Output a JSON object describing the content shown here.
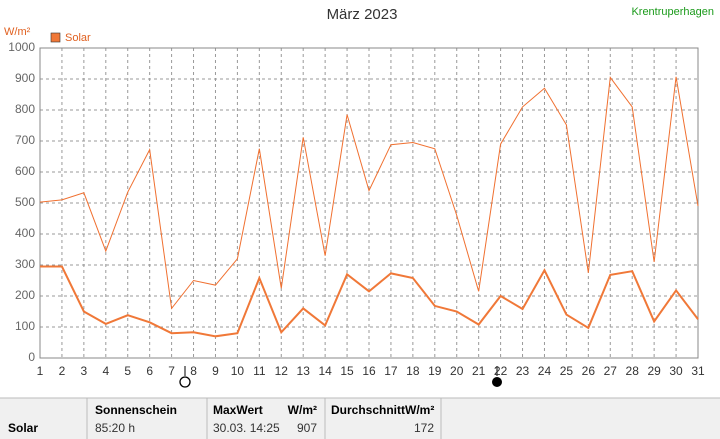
{
  "chart_data": {
    "type": "line",
    "title": "März 2023",
    "station": "Krentruperhagen",
    "y_label": "W/m²",
    "x": [
      1,
      2,
      3,
      4,
      5,
      6,
      7,
      8,
      9,
      10,
      11,
      12,
      13,
      14,
      15,
      16,
      17,
      18,
      19,
      20,
      21,
      22,
      23,
      24,
      25,
      26,
      27,
      28,
      29,
      30,
      31
    ],
    "xlim": [
      1,
      31
    ],
    "xticks": [
      1,
      2,
      3,
      4,
      5,
      6,
      7,
      8,
      9,
      10,
      11,
      12,
      13,
      14,
      15,
      16,
      17,
      18,
      19,
      20,
      21,
      22,
      23,
      24,
      25,
      26,
      27,
      28,
      29,
      30,
      31
    ],
    "ylim": [
      0,
      1000
    ],
    "yticks": [
      0,
      100,
      200,
      300,
      400,
      500,
      600,
      700,
      800,
      900,
      1000
    ],
    "grid": true,
    "series": [
      {
        "name": "Solar",
        "color": "#f07838",
        "width": 2,
        "values": [
          295,
          295,
          150,
          110,
          138,
          115,
          80,
          83,
          70,
          80,
          258,
          83,
          160,
          105,
          270,
          215,
          273,
          258,
          168,
          150,
          108,
          200,
          158,
          283,
          140,
          97,
          268,
          280,
          118,
          218,
          125
        ]
      },
      {
        "color": "#f07030",
        "width": 1,
        "values": [
          503,
          510,
          533,
          345,
          535,
          672,
          160,
          250,
          235,
          320,
          675,
          225,
          712,
          330,
          785,
          540,
          688,
          695,
          675,
          460,
          215,
          690,
          810,
          870,
          752,
          275,
          905,
          810,
          310,
          907,
          490
        ]
      }
    ]
  },
  "footer": {
    "label": "Solar",
    "sunshine_title": "Sonnenschein",
    "sunshine_value": "85:20 h",
    "max_title": "MaxWert",
    "max_unit": "W/m²",
    "max_time": "30.03. 14:25",
    "max_value": 907,
    "avg_title": "DurchschnittW/m²",
    "avg_value": 172
  }
}
